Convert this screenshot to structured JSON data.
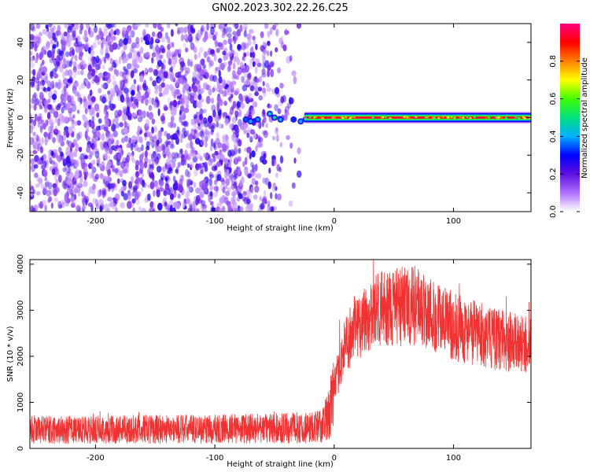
{
  "title": "GN02.2023.302.22.26.C25",
  "chart_data": [
    {
      "type": "heatmap",
      "xlabel": "Height of straight line (km)",
      "ylabel": "Frequency (Hz)",
      "xlim": [
        -255,
        165
      ],
      "ylim": [
        -50,
        50
      ],
      "x_ticks": [
        -200,
        -100,
        0,
        100
      ],
      "x_tick_labels": [
        "-200",
        "-100",
        "0",
        "100"
      ],
      "y_ticks": [
        -40,
        -20,
        0,
        20,
        40
      ],
      "y_tick_labels": [
        "-40",
        "-20",
        "0",
        "20",
        "40"
      ],
      "description_free": true,
      "noise_region_x": [
        -255,
        -25
      ],
      "signal_line": {
        "frequency": 0,
        "x_start": -25,
        "x_end": 165,
        "amplitude": 0.95
      },
      "signal_blobs": [
        {
          "x": -74,
          "y": -1,
          "amplitude": 0.35
        },
        {
          "x": -70,
          "y": -2,
          "amplitude": 0.4
        },
        {
          "x": -64,
          "y": -1,
          "amplitude": 0.38
        },
        {
          "x": -54,
          "y": 2,
          "amplitude": 0.45
        },
        {
          "x": -50,
          "y": 0,
          "amplitude": 0.5
        },
        {
          "x": -45,
          "y": -1,
          "amplitude": 0.42
        },
        {
          "x": -34,
          "y": -1,
          "amplitude": 0.32
        },
        {
          "x": -28,
          "y": -2,
          "amplitude": 0.4
        },
        {
          "x": -24,
          "y": -1,
          "amplitude": 0.45
        }
      ],
      "colorbar": {
        "label": "Normalized spectral amplitude",
        "ticks": [
          0.0,
          0.2,
          0.4,
          0.6,
          0.8
        ],
        "tick_labels": [
          "0.0",
          "0.2",
          "0.4",
          "0.6",
          "0.8"
        ],
        "range": [
          0,
          1
        ],
        "colors": [
          "#ffffff",
          "#b070ff",
          "#6010e0",
          "#0000ff",
          "#00b0ff",
          "#00e080",
          "#40ff00",
          "#ffff00",
          "#ff8000",
          "#ff0000",
          "#ff0080"
        ]
      }
    },
    {
      "type": "line",
      "xlabel": "Height of straight line (km)",
      "ylabel": "SNR (10 * v/v)",
      "xlim": [
        -255,
        165
      ],
      "ylim": [
        0,
        4100
      ],
      "x_ticks": [
        -200,
        -100,
        0,
        100
      ],
      "x_tick_labels": [
        "-200",
        "-100",
        "0",
        "100"
      ],
      "y_ticks": [
        0,
        1000,
        2000,
        3000,
        4000
      ],
      "y_tick_labels": [
        "0",
        "1000",
        "2000",
        "3000",
        "4000"
      ],
      "color": "#f03232",
      "envelope": {
        "x": [
          -255,
          -200,
          -150,
          -100,
          -60,
          -40,
          -20,
          -10,
          -5,
          0,
          5,
          10,
          20,
          30,
          40,
          50,
          60,
          70,
          80,
          90,
          100,
          110,
          120,
          130,
          140,
          150,
          165
        ],
        "y": [
          400,
          400,
          420,
          420,
          430,
          440,
          460,
          500,
          700,
          1300,
          1800,
          2300,
          2700,
          2900,
          3000,
          3050,
          3100,
          3100,
          2950,
          2800,
          2650,
          2550,
          2500,
          2400,
          2350,
          2300,
          2200
        ]
      },
      "noise_fraction": 0.2
    }
  ]
}
